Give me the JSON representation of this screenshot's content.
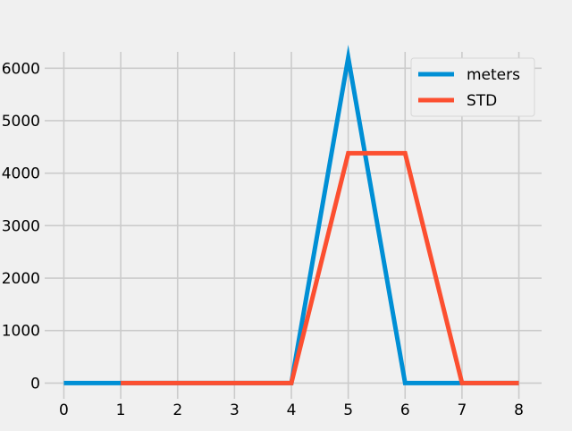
{
  "colors": {
    "background": "#f0f0f0",
    "grid": "#cbcbcb",
    "legend_bg": "#f0f0f0",
    "legend_border": "#d6d6d6"
  },
  "chart_data": {
    "type": "line",
    "title": "",
    "xlabel": "",
    "ylabel": "",
    "x": [
      0,
      1,
      2,
      3,
      4,
      5,
      6,
      7,
      8
    ],
    "xlim": [
      -0.4,
      8.4
    ],
    "ylim": [
      -300,
      6550
    ],
    "xticks": [
      0,
      1,
      2,
      3,
      4,
      5,
      6,
      7,
      8
    ],
    "yticks": [
      0,
      1000,
      2000,
      3000,
      4000,
      5000,
      6000
    ],
    "grid": true,
    "legend_position": "top-right",
    "series": [
      {
        "name": "meters",
        "color": "#008fd5",
        "x": [
          0,
          1,
          2,
          3,
          4,
          5,
          6,
          7,
          8
        ],
        "values": [
          0,
          0,
          0,
          0,
          0,
          6200,
          0,
          0,
          0
        ]
      },
      {
        "name": "STD",
        "color": "#fc4f30",
        "x": [
          1,
          2,
          3,
          4,
          5,
          6,
          7,
          8
        ],
        "values": [
          0,
          0,
          0,
          0,
          4380,
          4380,
          0,
          0
        ]
      }
    ]
  }
}
